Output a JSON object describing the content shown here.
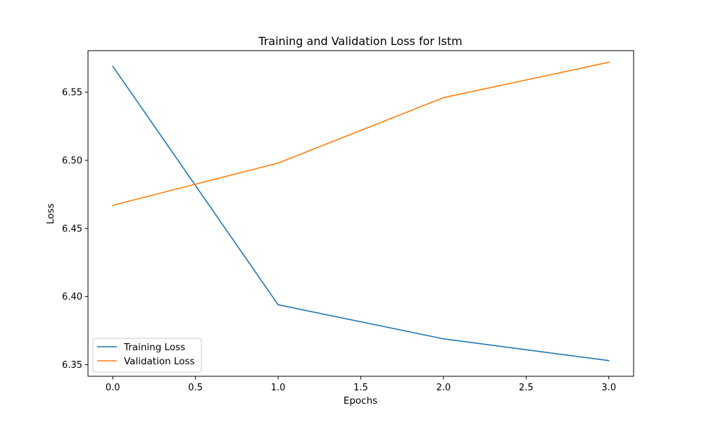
{
  "chart_data": {
    "type": "line",
    "title": "Training and Validation Loss for lstm",
    "xlabel": "Epochs",
    "ylabel": "Loss",
    "x": [
      0,
      1,
      2,
      3
    ],
    "xlim": [
      -0.15,
      3.15
    ],
    "ylim": [
      6.3415,
      6.5805
    ],
    "xticks": [
      0.0,
      0.5,
      1.0,
      1.5,
      2.0,
      2.5,
      3.0
    ],
    "xtick_labels": [
      "0.0",
      "0.5",
      "1.0",
      "1.5",
      "2.0",
      "2.5",
      "3.0"
    ],
    "yticks": [
      6.35,
      6.4,
      6.45,
      6.5,
      6.55
    ],
    "ytick_labels": [
      "6.35",
      "6.40",
      "6.45",
      "6.50",
      "6.55"
    ],
    "grid": false,
    "legend_position": "lower-left",
    "series": [
      {
        "name": "Training Loss",
        "color": "#1f77b4",
        "values": [
          6.569,
          6.394,
          6.369,
          6.353
        ]
      },
      {
        "name": "Validation Loss",
        "color": "#ff7f0e",
        "values": [
          6.467,
          6.498,
          6.546,
          6.572
        ]
      }
    ]
  }
}
